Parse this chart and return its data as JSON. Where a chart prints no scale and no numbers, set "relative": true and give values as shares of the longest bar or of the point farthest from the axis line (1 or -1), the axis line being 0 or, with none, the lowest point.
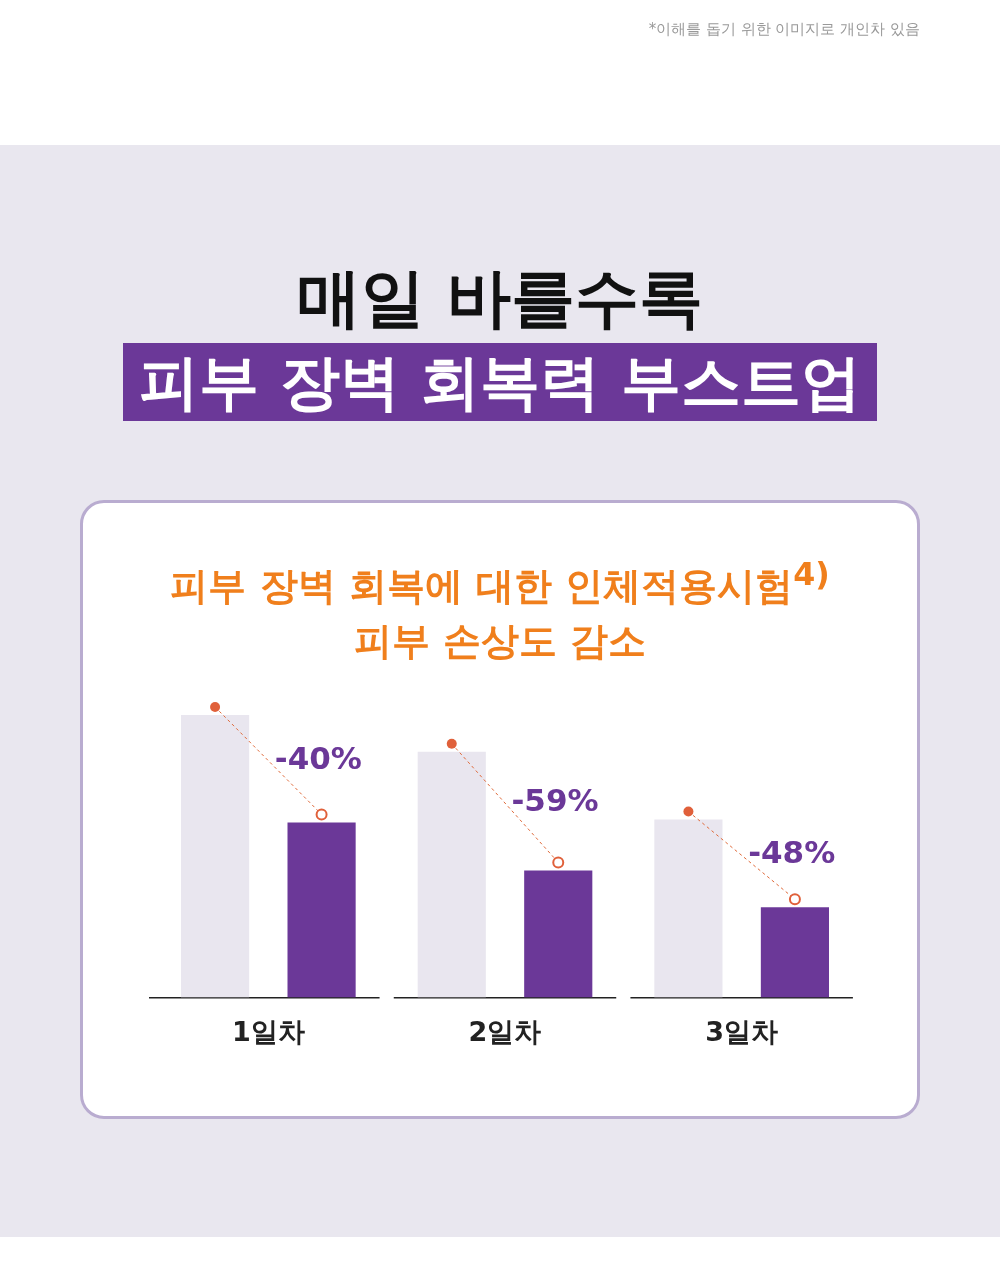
{
  "chart_data": {
    "type": "bar",
    "title": "매일 바를수록",
    "subtitle": "피부 장벽 회복력 부스트업",
    "categories": [
      "1일차",
      "2일차",
      "3일차"
    ],
    "series": [
      {
        "color": "#e9e6ef",
        "values": [
          1,
          0.87,
          0.63
        ]
      },
      {
        "color": "#6b3898",
        "values": [
          0.62,
          0.45,
          0.32
        ]
      }
    ],
    "relative": true,
    "annotations": [
      "*이해를 돕기 위한 이미지로 개인차 있음",
      "피부 장벽 회복에 대한 인체적용시험$^{4)}$",
      "피부 손상도 감소",
      "-40%",
      "-59%",
      "-48%"
    ]
  }
}
